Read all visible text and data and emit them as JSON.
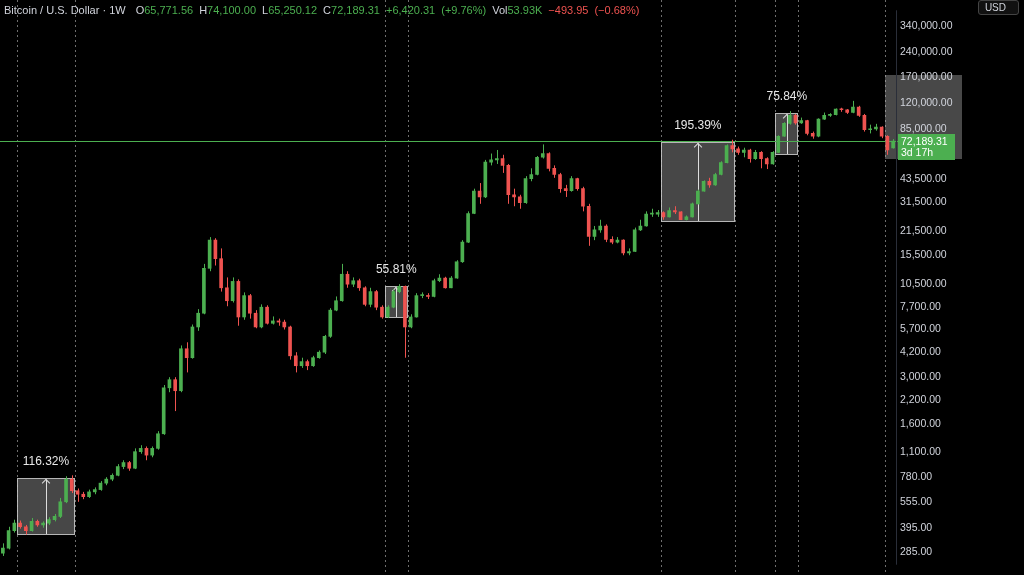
{
  "chart_data": {
    "type": "candlestick",
    "title": "Bitcoin / U.S. Dollar · 1W",
    "subtitle": "O65,771.56 H74,100.00 L65,250.12 C72,189.31 +6,420.31 (+9.76%) Vol53.93K −493.95 (−0.68%)",
    "annotations": [
      "116.32%",
      "55.81%",
      "195.39%",
      "75.84%",
      "3d 17h",
      "USD"
    ],
    "categories": [
      null,
      null,
      null,
      null,
      null,
      null,
      null,
      null,
      null,
      null,
      null,
      null,
      null,
      null,
      null,
      null,
      null,
      null,
      null,
      null,
      null,
      null,
      null,
      null,
      null,
      null,
      null,
      null,
      null,
      null,
      null,
      null,
      null,
      null,
      null,
      null,
      null,
      null,
      null,
      null,
      null,
      null,
      null,
      null,
      null,
      null,
      null,
      null,
      null,
      null,
      null,
      null,
      null,
      null,
      null,
      null,
      null,
      null,
      null,
      null,
      null,
      null,
      null,
      null,
      null,
      null,
      null,
      null,
      null,
      null,
      null,
      null,
      null,
      null,
      null,
      null,
      null,
      null,
      null,
      null,
      null,
      null,
      null,
      null,
      null,
      null,
      null,
      null,
      null,
      null,
      null,
      null,
      null,
      null,
      null,
      null,
      null,
      null,
      null,
      null,
      null,
      null,
      null,
      null,
      null,
      null,
      null,
      null,
      null,
      null,
      null,
      null,
      null,
      null,
      null,
      null,
      null,
      null,
      null,
      null,
      null,
      null,
      null,
      null,
      null,
      null,
      null,
      null,
      null,
      null,
      null,
      null,
      null,
      null,
      null,
      null,
      null,
      null,
      null,
      null,
      null,
      null,
      null,
      null,
      null,
      null,
      null,
      null,
      null,
      null,
      null,
      null,
      null,
      null,
      null,
      null
    ],
    "ohlc": [
      [
        280,
        320,
        270,
        300
      ],
      [
        300,
        400,
        295,
        380
      ],
      [
        380,
        440,
        370,
        420
      ],
      [
        420,
        435,
        390,
        400
      ],
      [
        400,
        410,
        360,
        380
      ],
      [
        380,
        450,
        375,
        430
      ],
      [
        430,
        440,
        400,
        410
      ],
      [
        410,
        430,
        395,
        420
      ],
      [
        420,
        455,
        410,
        440
      ],
      [
        440,
        475,
        430,
        460
      ],
      [
        460,
        590,
        450,
        560
      ],
      [
        560,
        790,
        550,
        760
      ],
      [
        760,
        800,
        630,
        650
      ],
      [
        650,
        670,
        560,
        620
      ],
      [
        620,
        640,
        580,
        600
      ],
      [
        600,
        660,
        590,
        640
      ],
      [
        640,
        680,
        620,
        660
      ],
      [
        660,
        740,
        650,
        720
      ],
      [
        720,
        780,
        700,
        760
      ],
      [
        760,
        820,
        740,
        800
      ],
      [
        800,
        930,
        790,
        900
      ],
      [
        900,
        980,
        870,
        950
      ],
      [
        950,
        970,
        850,
        880
      ],
      [
        880,
        1150,
        870,
        1100
      ],
      [
        1100,
        1200,
        1070,
        1150
      ],
      [
        1150,
        1180,
        980,
        1050
      ],
      [
        1050,
        1180,
        1020,
        1150
      ],
      [
        1150,
        1450,
        1130,
        1400
      ],
      [
        1400,
        2700,
        1380,
        2600
      ],
      [
        2600,
        3000,
        2450,
        2900
      ],
      [
        2900,
        3000,
        1900,
        2500
      ],
      [
        2500,
        4600,
        2450,
        4400
      ],
      [
        4400,
        4800,
        3200,
        3900
      ],
      [
        3900,
        6100,
        3850,
        5900
      ],
      [
        5900,
        7500,
        5600,
        7100
      ],
      [
        7100,
        13800,
        7000,
        13000
      ],
      [
        13000,
        19800,
        12500,
        19000
      ],
      [
        19000,
        19500,
        13500,
        14800
      ],
      [
        14800,
        17000,
        9500,
        10000
      ],
      [
        10000,
        11500,
        7800,
        8400
      ],
      [
        8400,
        11500,
        8200,
        10900
      ],
      [
        10900,
        11200,
        6000,
        6750
      ],
      [
        6750,
        9400,
        6500,
        9000
      ],
      [
        9000,
        9200,
        6600,
        7100
      ],
      [
        7100,
        7400,
        5800,
        5900
      ],
      [
        5900,
        8000,
        5800,
        7700
      ],
      [
        7700,
        7900,
        6100,
        6200
      ],
      [
        6200,
        6800,
        6100,
        6400
      ],
      [
        6400,
        6600,
        6000,
        6300
      ],
      [
        6300,
        6500,
        5700,
        5900
      ],
      [
        5900,
        6000,
        3800,
        4000
      ],
      [
        4000,
        4200,
        3200,
        3500
      ],
      [
        3500,
        3900,
        3400,
        3700
      ],
      [
        3700,
        3800,
        3300,
        3500
      ],
      [
        3500,
        4000,
        3450,
        3900
      ],
      [
        3900,
        4300,
        3850,
        4200
      ],
      [
        4200,
        5300,
        4100,
        5200
      ],
      [
        5200,
        7600,
        5100,
        7400
      ],
      [
        7400,
        8900,
        7300,
        8400
      ],
      [
        8400,
        13800,
        8300,
        12000
      ],
      [
        12000,
        12500,
        10000,
        10500
      ],
      [
        10500,
        11500,
        10100,
        11000
      ],
      [
        11000,
        11300,
        9600,
        10000
      ],
      [
        10000,
        10200,
        7800,
        8000
      ],
      [
        8000,
        10000,
        7700,
        9500
      ],
      [
        9500,
        9700,
        7400,
        7700
      ],
      [
        7700,
        7900,
        6600,
        6750
      ],
      [
        6750,
        7900,
        6650,
        7700
      ],
      [
        7700,
        9800,
        7600,
        9500
      ],
      [
        9500,
        10500,
        9300,
        10200
      ],
      [
        10200,
        10300,
        3900,
        5900
      ],
      [
        5900,
        7000,
        5800,
        6750
      ],
      [
        6750,
        9300,
        6700,
        9000
      ],
      [
        9000,
        9400,
        8700,
        9000
      ],
      [
        9000,
        9300,
        8600,
        8900
      ],
      [
        8900,
        11300,
        8800,
        11000
      ],
      [
        11000,
        12000,
        10800,
        11400
      ],
      [
        11400,
        11600,
        9900,
        10000
      ],
      [
        10000,
        11700,
        9950,
        11400
      ],
      [
        11400,
        14500,
        11300,
        14200
      ],
      [
        14200,
        19000,
        14000,
        18500
      ],
      [
        18500,
        28000,
        18300,
        27200
      ],
      [
        27200,
        38000,
        27000,
        36800
      ],
      [
        36800,
        41000,
        31000,
        34000
      ],
      [
        34000,
        56000,
        33500,
        54300
      ],
      [
        54300,
        61000,
        52000,
        56000
      ],
      [
        56000,
        64000,
        53000,
        57000
      ],
      [
        57000,
        60000,
        47000,
        52000
      ],
      [
        52000,
        53000,
        31000,
        35000
      ],
      [
        35000,
        38000,
        30000,
        34000
      ],
      [
        34000,
        35000,
        29000,
        31500
      ],
      [
        31500,
        45000,
        31000,
        43500
      ],
      [
        43500,
        50000,
        42000,
        46000
      ],
      [
        46000,
        59000,
        45500,
        58000
      ],
      [
        58000,
        69000,
        57000,
        61000
      ],
      [
        61000,
        62000,
        48000,
        50000
      ],
      [
        50000,
        52000,
        44000,
        46000
      ],
      [
        46000,
        47000,
        36000,
        38000
      ],
      [
        38000,
        40000,
        34000,
        37000
      ],
      [
        37000,
        45000,
        36500,
        43500
      ],
      [
        43500,
        44000,
        37000,
        38000
      ],
      [
        38000,
        39000,
        28000,
        30000
      ],
      [
        30000,
        31000,
        17600,
        20000
      ],
      [
        20000,
        23000,
        19000,
        21800
      ],
      [
        21800,
        25000,
        21000,
        23000
      ],
      [
        23000,
        23500,
        18500,
        19200
      ],
      [
        19200,
        20000,
        18000,
        18500
      ],
      [
        18500,
        19800,
        18200,
        19000
      ],
      [
        19000,
        19200,
        15500,
        16000
      ],
      [
        16000,
        17000,
        15500,
        16300
      ],
      [
        16300,
        22500,
        16200,
        21800
      ],
      [
        21800,
        25000,
        21500,
        23000
      ],
      [
        23000,
        28000,
        22800,
        27000
      ],
      [
        27000,
        29000,
        26000,
        27000
      ],
      [
        27000,
        28500,
        26000,
        27500
      ],
      [
        27500,
        28000,
        25000,
        26000
      ],
      [
        26000,
        29500,
        25800,
        28300
      ],
      [
        28300,
        30000,
        27000,
        27800
      ],
      [
        27800,
        28000,
        24900,
        25000
      ],
      [
        25000,
        26500,
        24800,
        26000
      ],
      [
        26000,
        31500,
        25800,
        31000
      ],
      [
        31000,
        37500,
        30800,
        36800
      ],
      [
        36800,
        42500,
        36500,
        41900
      ],
      [
        41900,
        44000,
        38500,
        40000
      ],
      [
        40000,
        47000,
        39500,
        46000
      ],
      [
        46000,
        55000,
        45500,
        54000
      ],
      [
        54000,
        69000,
        53500,
        67800
      ],
      [
        67800,
        73500,
        62000,
        65000
      ],
      [
        65000,
        67000,
        60000,
        62000
      ],
      [
        62000,
        66000,
        58000,
        64000
      ],
      [
        64000,
        65000,
        54000,
        57000
      ],
      [
        57000,
        64000,
        56000,
        62000
      ],
      [
        62000,
        63000,
        50000,
        57000
      ],
      [
        57000,
        58000,
        49500,
        53000
      ],
      [
        53000,
        63000,
        52500,
        62000
      ],
      [
        62000,
        78000,
        61500,
        77000
      ],
      [
        77000,
        93000,
        76500,
        91500
      ],
      [
        91500,
        108000,
        90000,
        102000
      ],
      [
        102000,
        104000,
        90000,
        92000
      ],
      [
        92000,
        99000,
        91000,
        95000
      ],
      [
        95000,
        96000,
        78000,
        80000
      ],
      [
        80000,
        82000,
        74500,
        77000
      ],
      [
        77000,
        98000,
        76000,
        97000
      ],
      [
        97000,
        106000,
        96000,
        102000
      ],
      [
        102000,
        105000,
        100000,
        103000
      ],
      [
        103000,
        112000,
        102000,
        111000
      ],
      [
        111000,
        113000,
        107000,
        110000
      ],
      [
        110000,
        111000,
        104000,
        106000
      ],
      [
        106000,
        124000,
        105000,
        114000
      ],
      [
        114000,
        116000,
        100000,
        102000
      ],
      [
        102000,
        104000,
        82000,
        84000
      ],
      [
        84000,
        90000,
        80000,
        85000
      ],
      [
        85000,
        91000,
        83000,
        87000
      ],
      [
        87000,
        88000,
        75000,
        77000
      ],
      [
        77000,
        78000,
        60000,
        64000
      ],
      [
        65771.56,
        74100,
        65250.12,
        72189.31
      ]
    ],
    "log": true,
    "ylim": [
      240,
      420000
    ],
    "yticks": [
      {
        "value": 285,
        "label": "285.00"
      },
      {
        "value": 395,
        "label": "395.00"
      },
      {
        "value": 555,
        "label": "555.00"
      },
      {
        "value": 780,
        "label": "780.00"
      },
      {
        "value": 1100,
        "label": "1,100.00"
      },
      {
        "value": 1600,
        "label": "1,600.00"
      },
      {
        "value": 2200,
        "label": "2,200.00"
      },
      {
        "value": 3000,
        "label": "3,000.00"
      },
      {
        "value": 4200,
        "label": "4,200.00"
      },
      {
        "value": 5700,
        "label": "5,700.00"
      },
      {
        "value": 7700,
        "label": "7,700.00"
      },
      {
        "value": 10500,
        "label": "10,500.00"
      },
      {
        "value": 15500,
        "label": "15,500.00"
      },
      {
        "value": 21500,
        "label": "21,500.00"
      },
      {
        "value": 31500,
        "label": "31,500.00"
      },
      {
        "value": 43500,
        "label": "43,500.00"
      },
      {
        "value": 85000,
        "label": "85,000.00"
      },
      {
        "value": 120000,
        "label": "120,000.00"
      },
      {
        "value": 170000,
        "label": "170,000.00"
      },
      {
        "value": 240000,
        "label": "240,000.00"
      },
      {
        "value": 340000,
        "label": "340,000.00"
      }
    ],
    "tick_labels": "y",
    "ref_lines": [
      {
        "axis": "y",
        "value": 72189.31,
        "label": "72,189.31",
        "color": "#4caf50"
      }
    ]
  }
}
